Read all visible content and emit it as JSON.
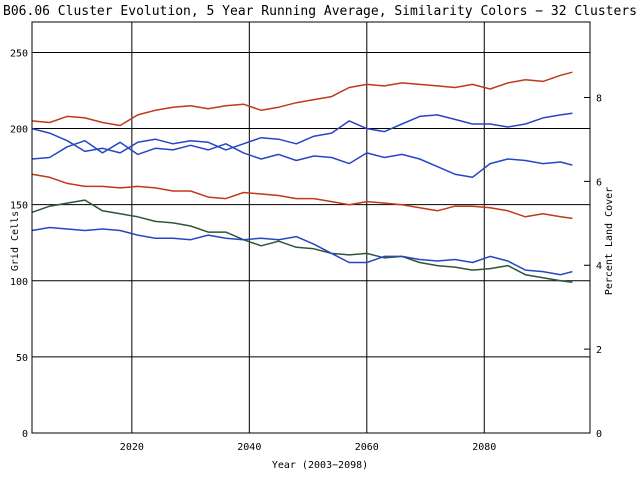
{
  "chart_data": {
    "type": "line",
    "title": "B06.06 Cluster Evolution, 5 Year Running Average, Similarity Colors − 32 Clusters",
    "xlabel": "Year (2003−2098)",
    "ylabel": "Grid Cells",
    "y2label": "Percent Land Cover",
    "xlim": [
      2003,
      2098
    ],
    "ylim": [
      0,
      270
    ],
    "y2lim": [
      0,
      9.8
    ],
    "xticks": [
      2020,
      2040,
      2060,
      2080
    ],
    "yticks": [
      0,
      50,
      100,
      150,
      200,
      250
    ],
    "y2ticks": [
      0,
      2,
      4,
      6,
      8
    ],
    "grid": true,
    "x": [
      2003,
      2006,
      2009,
      2012,
      2015,
      2018,
      2021,
      2024,
      2027,
      2030,
      2033,
      2036,
      2039,
      2042,
      2045,
      2048,
      2051,
      2054,
      2057,
      2060,
      2063,
      2066,
      2069,
      2072,
      2075,
      2078,
      2081,
      2084,
      2087,
      2090,
      2093,
      2095
    ],
    "series": [
      {
        "color": "#c0391b",
        "values": [
          205,
          204,
          208,
          207,
          204,
          202,
          209,
          212,
          214,
          215,
          213,
          215,
          216,
          212,
          214,
          217,
          219,
          221,
          227,
          229,
          228,
          230,
          229,
          228,
          227,
          229,
          226,
          230,
          232,
          231,
          235,
          237
        ]
      },
      {
        "color": "#2746c4",
        "values": [
          200,
          197,
          192,
          185,
          187,
          184,
          191,
          193,
          190,
          192,
          191,
          186,
          190,
          194,
          193,
          190,
          195,
          197,
          205,
          200,
          198,
          203,
          208,
          209,
          206,
          203,
          203,
          201,
          203,
          207,
          209,
          210
        ]
      },
      {
        "color": "#2746c4",
        "values": [
          180,
          181,
          188,
          192,
          184,
          191,
          183,
          187,
          186,
          189,
          186,
          190,
          184,
          180,
          183,
          179,
          182,
          181,
          177,
          184,
          181,
          183,
          180,
          175,
          170,
          168,
          177,
          180,
          179,
          177,
          178,
          176
        ]
      },
      {
        "color": "#c0391b",
        "values": [
          170,
          168,
          164,
          162,
          162,
          161,
          162,
          161,
          159,
          159,
          155,
          154,
          158,
          157,
          156,
          154,
          154,
          152,
          150,
          152,
          151,
          150,
          148,
          146,
          149,
          149,
          148,
          146,
          142,
          144,
          142,
          141
        ]
      },
      {
        "color": "#2d5636",
        "values": [
          145,
          149,
          151,
          153,
          146,
          144,
          142,
          139,
          138,
          136,
          132,
          132,
          127,
          123,
          126,
          122,
          121,
          118,
          117,
          118,
          115,
          116,
          112,
          110,
          109,
          107,
          108,
          110,
          104,
          102,
          100,
          99
        ]
      },
      {
        "color": "#2746c4",
        "values": [
          133,
          135,
          134,
          133,
          134,
          133,
          130,
          128,
          128,
          127,
          130,
          128,
          127,
          128,
          127,
          129,
          124,
          118,
          112,
          112,
          116,
          116,
          114,
          113,
          114,
          112,
          116,
          113,
          107,
          106,
          104,
          106
        ]
      }
    ]
  }
}
